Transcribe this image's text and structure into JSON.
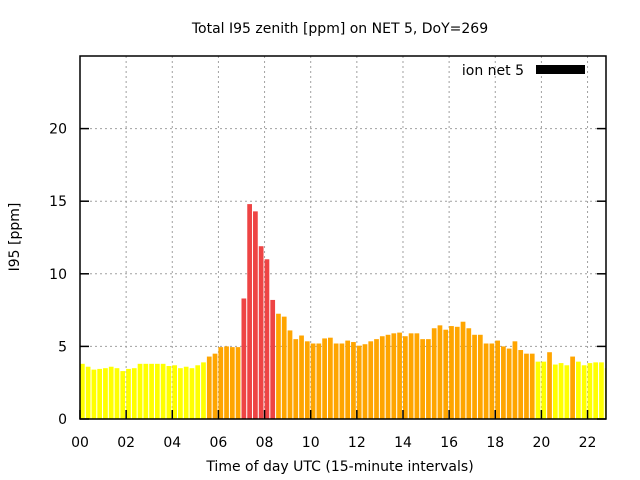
{
  "chart_data": {
    "type": "bar",
    "title": "Total I95 zenith [ppm] on NET 5, DoY=269",
    "xlabel": "Time of day UTC (15-minute intervals)",
    "ylabel": "I95 [ppm]",
    "xlim": [
      0,
      22.8
    ],
    "ylim": [
      0,
      25
    ],
    "grid": true,
    "legend": {
      "label": "ion net 5",
      "placement": "top-right",
      "color": "#000000"
    },
    "x_ticks": [
      0,
      2,
      4,
      6,
      8,
      10,
      12,
      14,
      16,
      18,
      20,
      22
    ],
    "x_tick_labels": [
      "00",
      "02",
      "04",
      "06",
      "08",
      "10",
      "12",
      "14",
      "16",
      "18",
      "20",
      "22"
    ],
    "y_ticks": [
      0,
      5,
      10,
      15,
      20
    ],
    "y_tick_labels": [
      "0",
      "5",
      "10",
      "15",
      "20"
    ],
    "bar_interval_hours": 0.25,
    "color_thresholds": {
      "orange_from": 4.0,
      "red_from": 8.0
    },
    "colors": {
      "low": "#ffff00",
      "mid": "#ffa500",
      "high": "#ee4444"
    },
    "values": [
      3.8,
      3.6,
      3.4,
      3.45,
      3.5,
      3.6,
      3.5,
      3.3,
      3.45,
      3.5,
      3.8,
      3.8,
      3.8,
      3.8,
      3.8,
      3.65,
      3.7,
      3.5,
      3.6,
      3.5,
      3.7,
      3.9,
      4.3,
      4.5,
      4.95,
      5.0,
      4.95,
      4.95,
      8.3,
      14.8,
      14.3,
      11.9,
      11.0,
      8.2,
      7.25,
      7.05,
      6.1,
      5.5,
      5.75,
      5.35,
      5.2,
      5.2,
      5.55,
      5.6,
      5.2,
      5.2,
      5.4,
      5.3,
      5.05,
      5.15,
      5.35,
      5.5,
      5.7,
      5.8,
      5.9,
      5.95,
      5.7,
      5.9,
      5.9,
      5.5,
      5.5,
      6.25,
      6.45,
      6.15,
      6.4,
      6.35,
      6.7,
      6.25,
      5.8,
      5.8,
      5.2,
      5.2,
      5.4,
      5.0,
      4.85,
      5.35,
      4.75,
      4.5,
      4.5,
      3.95,
      3.95,
      4.6,
      3.75,
      3.85,
      3.7,
      4.3,
      3.95,
      3.7,
      3.85,
      3.9,
      3.9,
      3.5,
      3.35
    ]
  }
}
